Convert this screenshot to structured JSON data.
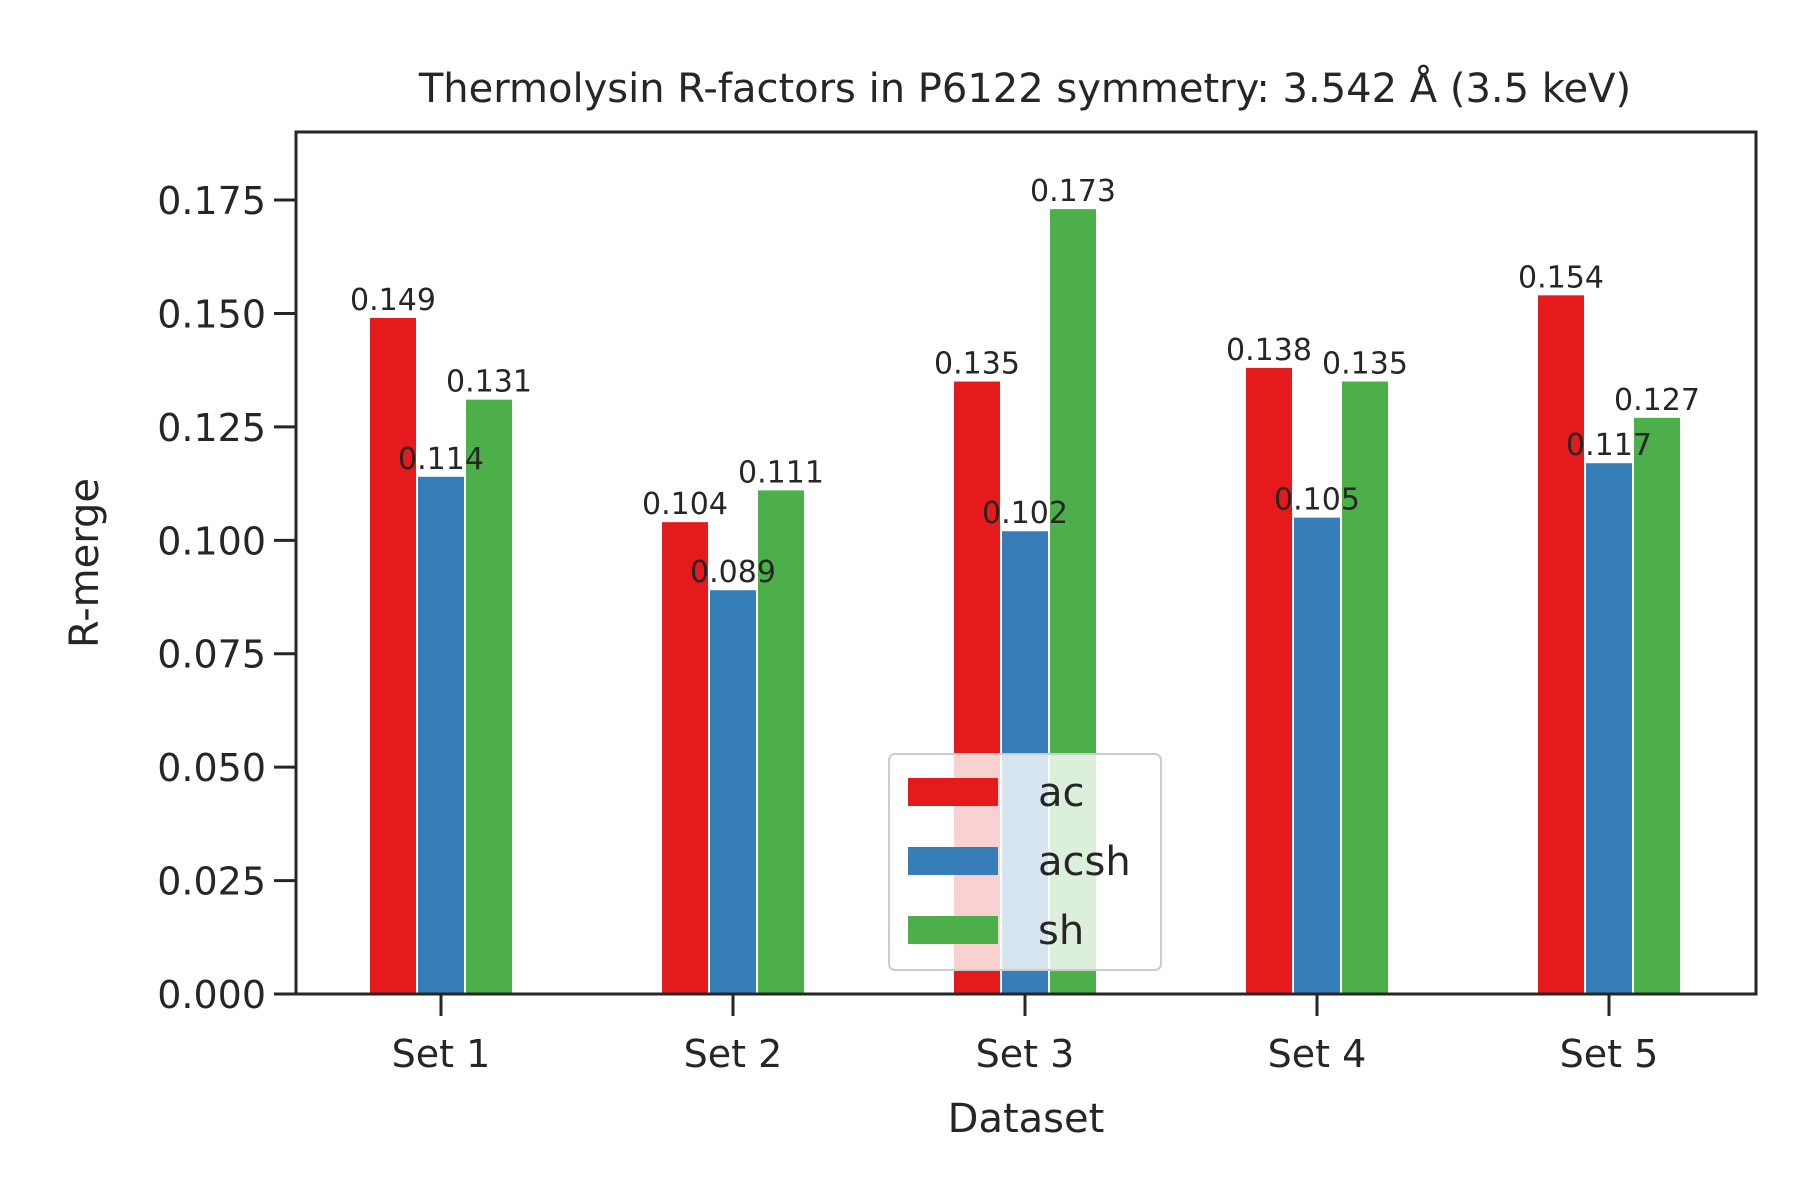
{
  "chart_data": {
    "type": "bar",
    "title": "Thermolysin R-factors in P6122 symmetry: 3.542 Å (3.5 keV)",
    "xlabel": "Dataset",
    "ylabel": "R-merge",
    "categories": [
      "Set 1",
      "Set 2",
      "Set 3",
      "Set 4",
      "Set 5"
    ],
    "series": [
      {
        "name": "ac",
        "color": "#e41a1c",
        "values": [
          0.149,
          0.104,
          0.135,
          0.138,
          0.154
        ]
      },
      {
        "name": "acsh",
        "color": "#377eb8",
        "values": [
          0.114,
          0.089,
          0.102,
          0.105,
          0.117
        ]
      },
      {
        "name": "sh",
        "color": "#4daf4a",
        "values": [
          0.131,
          0.111,
          0.173,
          0.135,
          0.127
        ]
      }
    ],
    "value_labels": [
      [
        "0.149",
        "0.104",
        "0.135",
        "0.138",
        "0.154"
      ],
      [
        "0.114",
        "0.089",
        "0.102",
        "0.105",
        "0.117"
      ],
      [
        "0.131",
        "0.111",
        "0.173",
        "0.135",
        "0.127"
      ]
    ],
    "ylim": [
      0,
      0.19
    ],
    "yticks": [
      0.0,
      0.025,
      0.05,
      0.075,
      0.1,
      0.125,
      0.15,
      0.175
    ],
    "ytick_labels": [
      "0.000",
      "0.025",
      "0.050",
      "0.075",
      "0.100",
      "0.125",
      "0.150",
      "0.175"
    ],
    "grid": false,
    "legend_position": "lower-center"
  }
}
